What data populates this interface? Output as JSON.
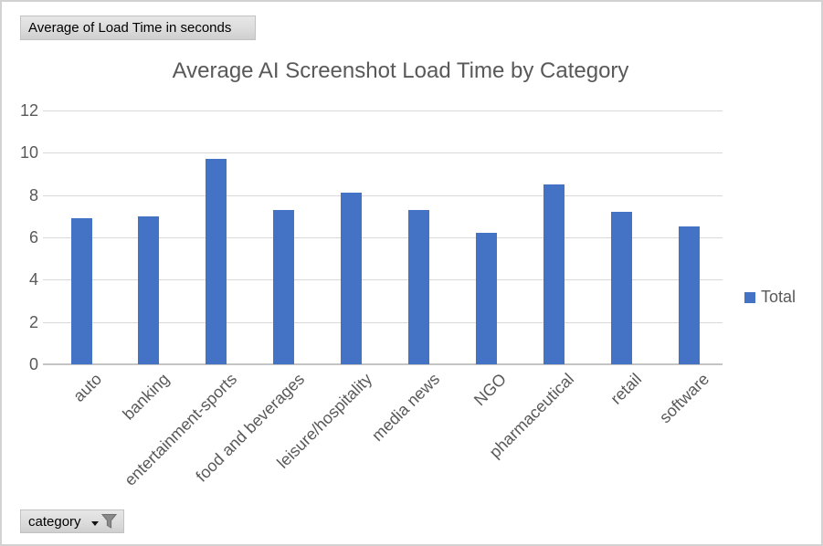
{
  "field_buttons": {
    "value_button_label": "Average of Load Time in seconds",
    "category_button_label": "category"
  },
  "icons": {
    "dropdown_arrow": "small black down-triangle",
    "filter_icon": "gray funnel"
  },
  "colors": {
    "bar": "#4472C4",
    "axis_text": "#595959",
    "gridline": "#D9D9D9"
  },
  "legend": {
    "position": "right"
  },
  "chart_data": {
    "type": "bar",
    "title": "Average AI Screenshot Load Time by Category",
    "categories": [
      "auto",
      "banking",
      "entertainment-sports",
      "food and beverages",
      "leisure/hospitality",
      "media news",
      "NGO",
      "pharmaceutical",
      "retail",
      "software"
    ],
    "series": [
      {
        "name": "Total",
        "values": [
          6.9,
          7.0,
          9.7,
          7.3,
          8.1,
          7.3,
          6.2,
          8.5,
          7.2,
          6.5
        ]
      }
    ],
    "xlabel": "",
    "ylabel": "",
    "ylim": [
      0,
      12
    ],
    "yticks": [
      0,
      2,
      4,
      6,
      8,
      10,
      12
    ],
    "grid": true,
    "legend_position": "right"
  }
}
